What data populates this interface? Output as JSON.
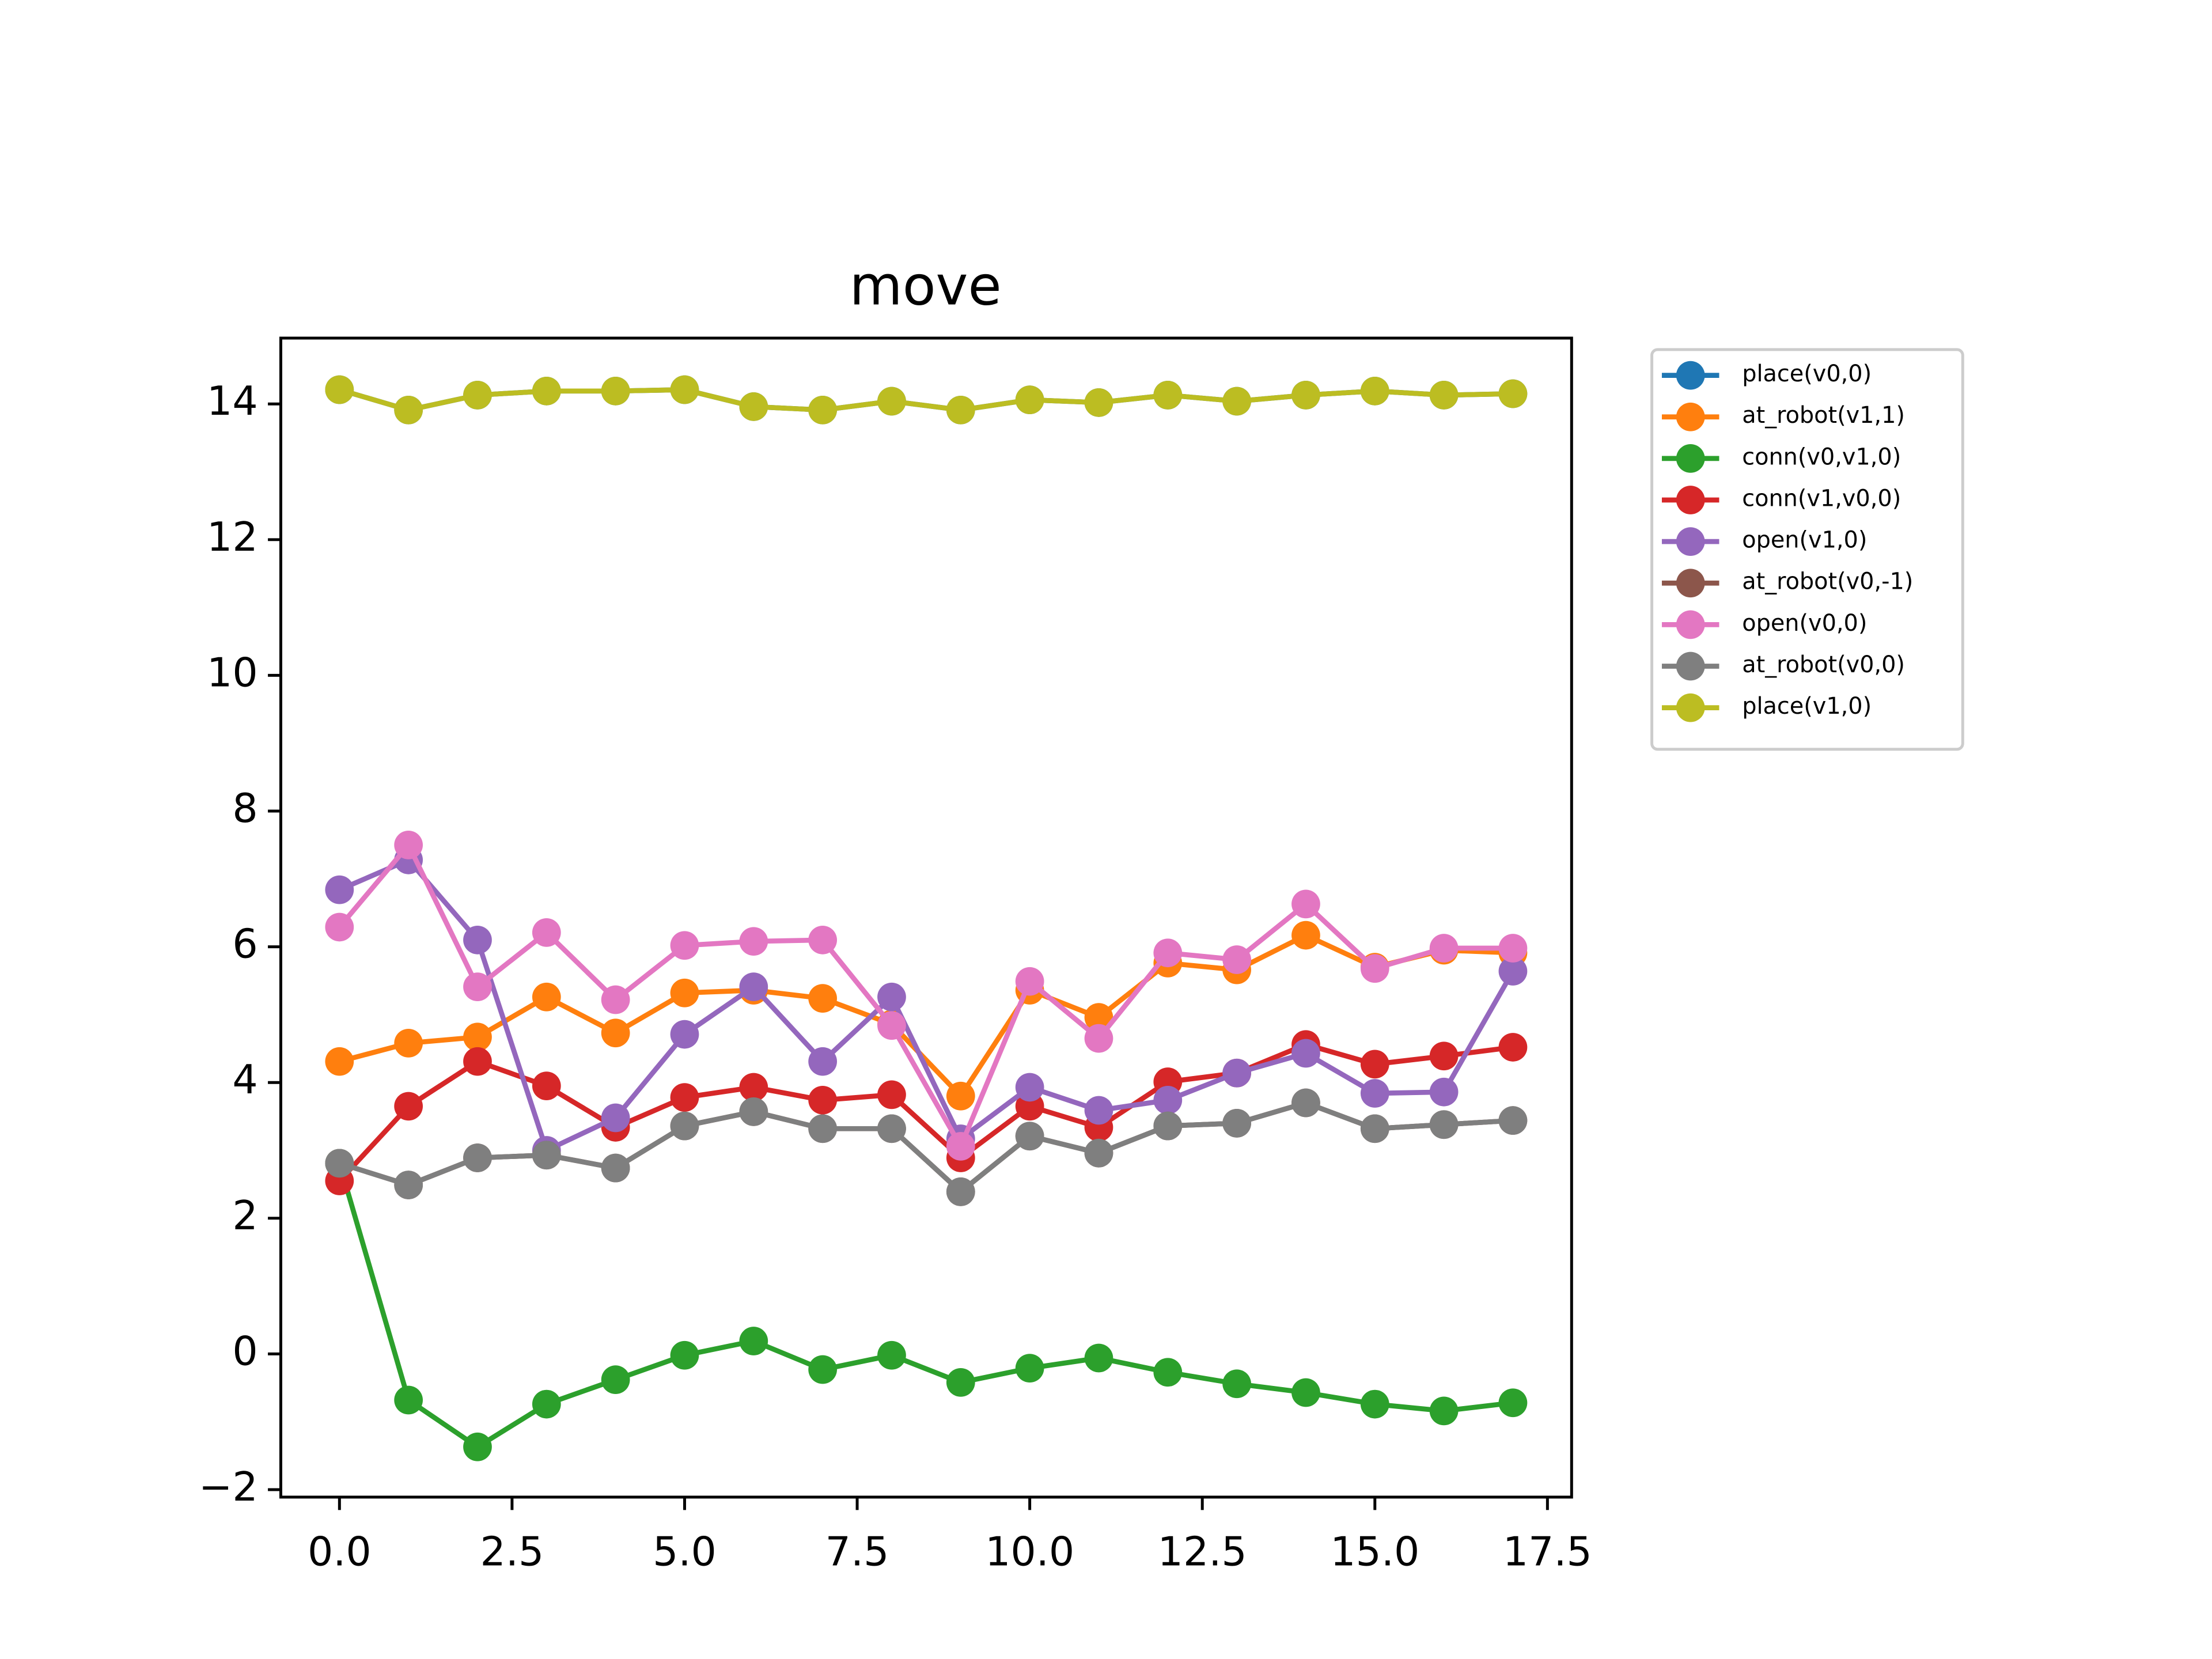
{
  "chart_data": {
    "type": "line",
    "title": "move",
    "x": [
      0,
      1,
      2,
      3,
      4,
      5,
      6,
      7,
      8,
      9,
      10,
      11,
      12,
      13,
      14,
      15,
      16,
      17
    ],
    "xlim": [
      -0.85,
      17.85
    ],
    "xticks": [
      {
        "value": 0,
        "label": "0.0"
      },
      2.5,
      {
        "value": 5,
        "label": "5.0"
      },
      7.5,
      {
        "value": 10,
        "label": "10.0"
      },
      12.5,
      {
        "value": 15,
        "label": "15.0"
      },
      17.5
    ],
    "ylim": [
      -2.11,
      14.97
    ],
    "yticks": [
      {
        "value": -2,
        "label": "−2"
      },
      0,
      2,
      4,
      6,
      8,
      10,
      12,
      14
    ],
    "legend": "outside-upper-right",
    "series": [
      {
        "name": "place(v0,0)",
        "color": "#1f77b4",
        "values": [
          14.21,
          13.91,
          14.13,
          14.19,
          14.19,
          14.21,
          13.96,
          13.91,
          14.04,
          13.91,
          14.06,
          14.02,
          14.13,
          14.04,
          14.13,
          14.19,
          14.13,
          14.15
        ]
      },
      {
        "name": "at_robot(v1,1)",
        "color": "#ff7f0e",
        "values": [
          4.31,
          4.58,
          4.67,
          5.26,
          4.73,
          5.32,
          5.36,
          5.24,
          4.86,
          3.8,
          5.36,
          4.96,
          5.76,
          5.66,
          6.17,
          5.7,
          5.95,
          5.91
        ]
      },
      {
        "name": "conn(v0,v1,0)",
        "color": "#2ca02c",
        "values": [
          2.81,
          -0.68,
          -1.37,
          -0.74,
          -0.38,
          -0.02,
          0.19,
          -0.23,
          -0.02,
          -0.42,
          -0.21,
          -0.06,
          -0.27,
          -0.44,
          -0.57,
          -0.74,
          -0.84,
          -0.72
        ]
      },
      {
        "name": "conn(v1,v0,0)",
        "color": "#d62728",
        "values": [
          2.55,
          3.65,
          4.31,
          3.95,
          3.34,
          3.78,
          3.93,
          3.74,
          3.82,
          2.89,
          3.65,
          3.34,
          4.01,
          4.14,
          4.56,
          4.27,
          4.39,
          4.52
        ]
      },
      {
        "name": "open(v1,0)",
        "color": "#9467bd",
        "values": [
          6.84,
          7.28,
          6.1,
          3.0,
          3.48,
          4.71,
          5.41,
          4.31,
          5.26,
          3.17,
          3.93,
          3.59,
          3.74,
          4.14,
          4.43,
          3.84,
          3.86,
          5.64
        ]
      },
      {
        "name": "at_robot(v0,-1)",
        "color": "#8c564b",
        "values": [
          2.81,
          2.49,
          2.89,
          2.93,
          2.74,
          3.36,
          3.57,
          3.32,
          3.32,
          2.39,
          3.21,
          2.96,
          3.36,
          3.4,
          3.7,
          3.32,
          3.38,
          3.44
        ]
      },
      {
        "name": "open(v0,0)",
        "color": "#e377c2",
        "values": [
          6.29,
          7.5,
          5.41,
          6.21,
          5.22,
          6.02,
          6.08,
          6.1,
          4.84,
          3.06,
          5.49,
          4.65,
          5.91,
          5.81,
          6.63,
          5.68,
          5.98,
          5.98
        ]
      },
      {
        "name": "at_robot(v0,0)",
        "color": "#7f7f7f",
        "values": [
          2.81,
          2.49,
          2.89,
          2.93,
          2.74,
          3.36,
          3.57,
          3.32,
          3.32,
          2.39,
          3.21,
          2.96,
          3.36,
          3.4,
          3.7,
          3.32,
          3.38,
          3.44
        ]
      },
      {
        "name": "place(v1,0)",
        "color": "#bcbd22",
        "values": [
          14.21,
          13.91,
          14.13,
          14.19,
          14.19,
          14.21,
          13.96,
          13.91,
          14.04,
          13.91,
          14.06,
          14.02,
          14.13,
          14.04,
          14.13,
          14.19,
          14.13,
          14.15
        ]
      }
    ]
  }
}
